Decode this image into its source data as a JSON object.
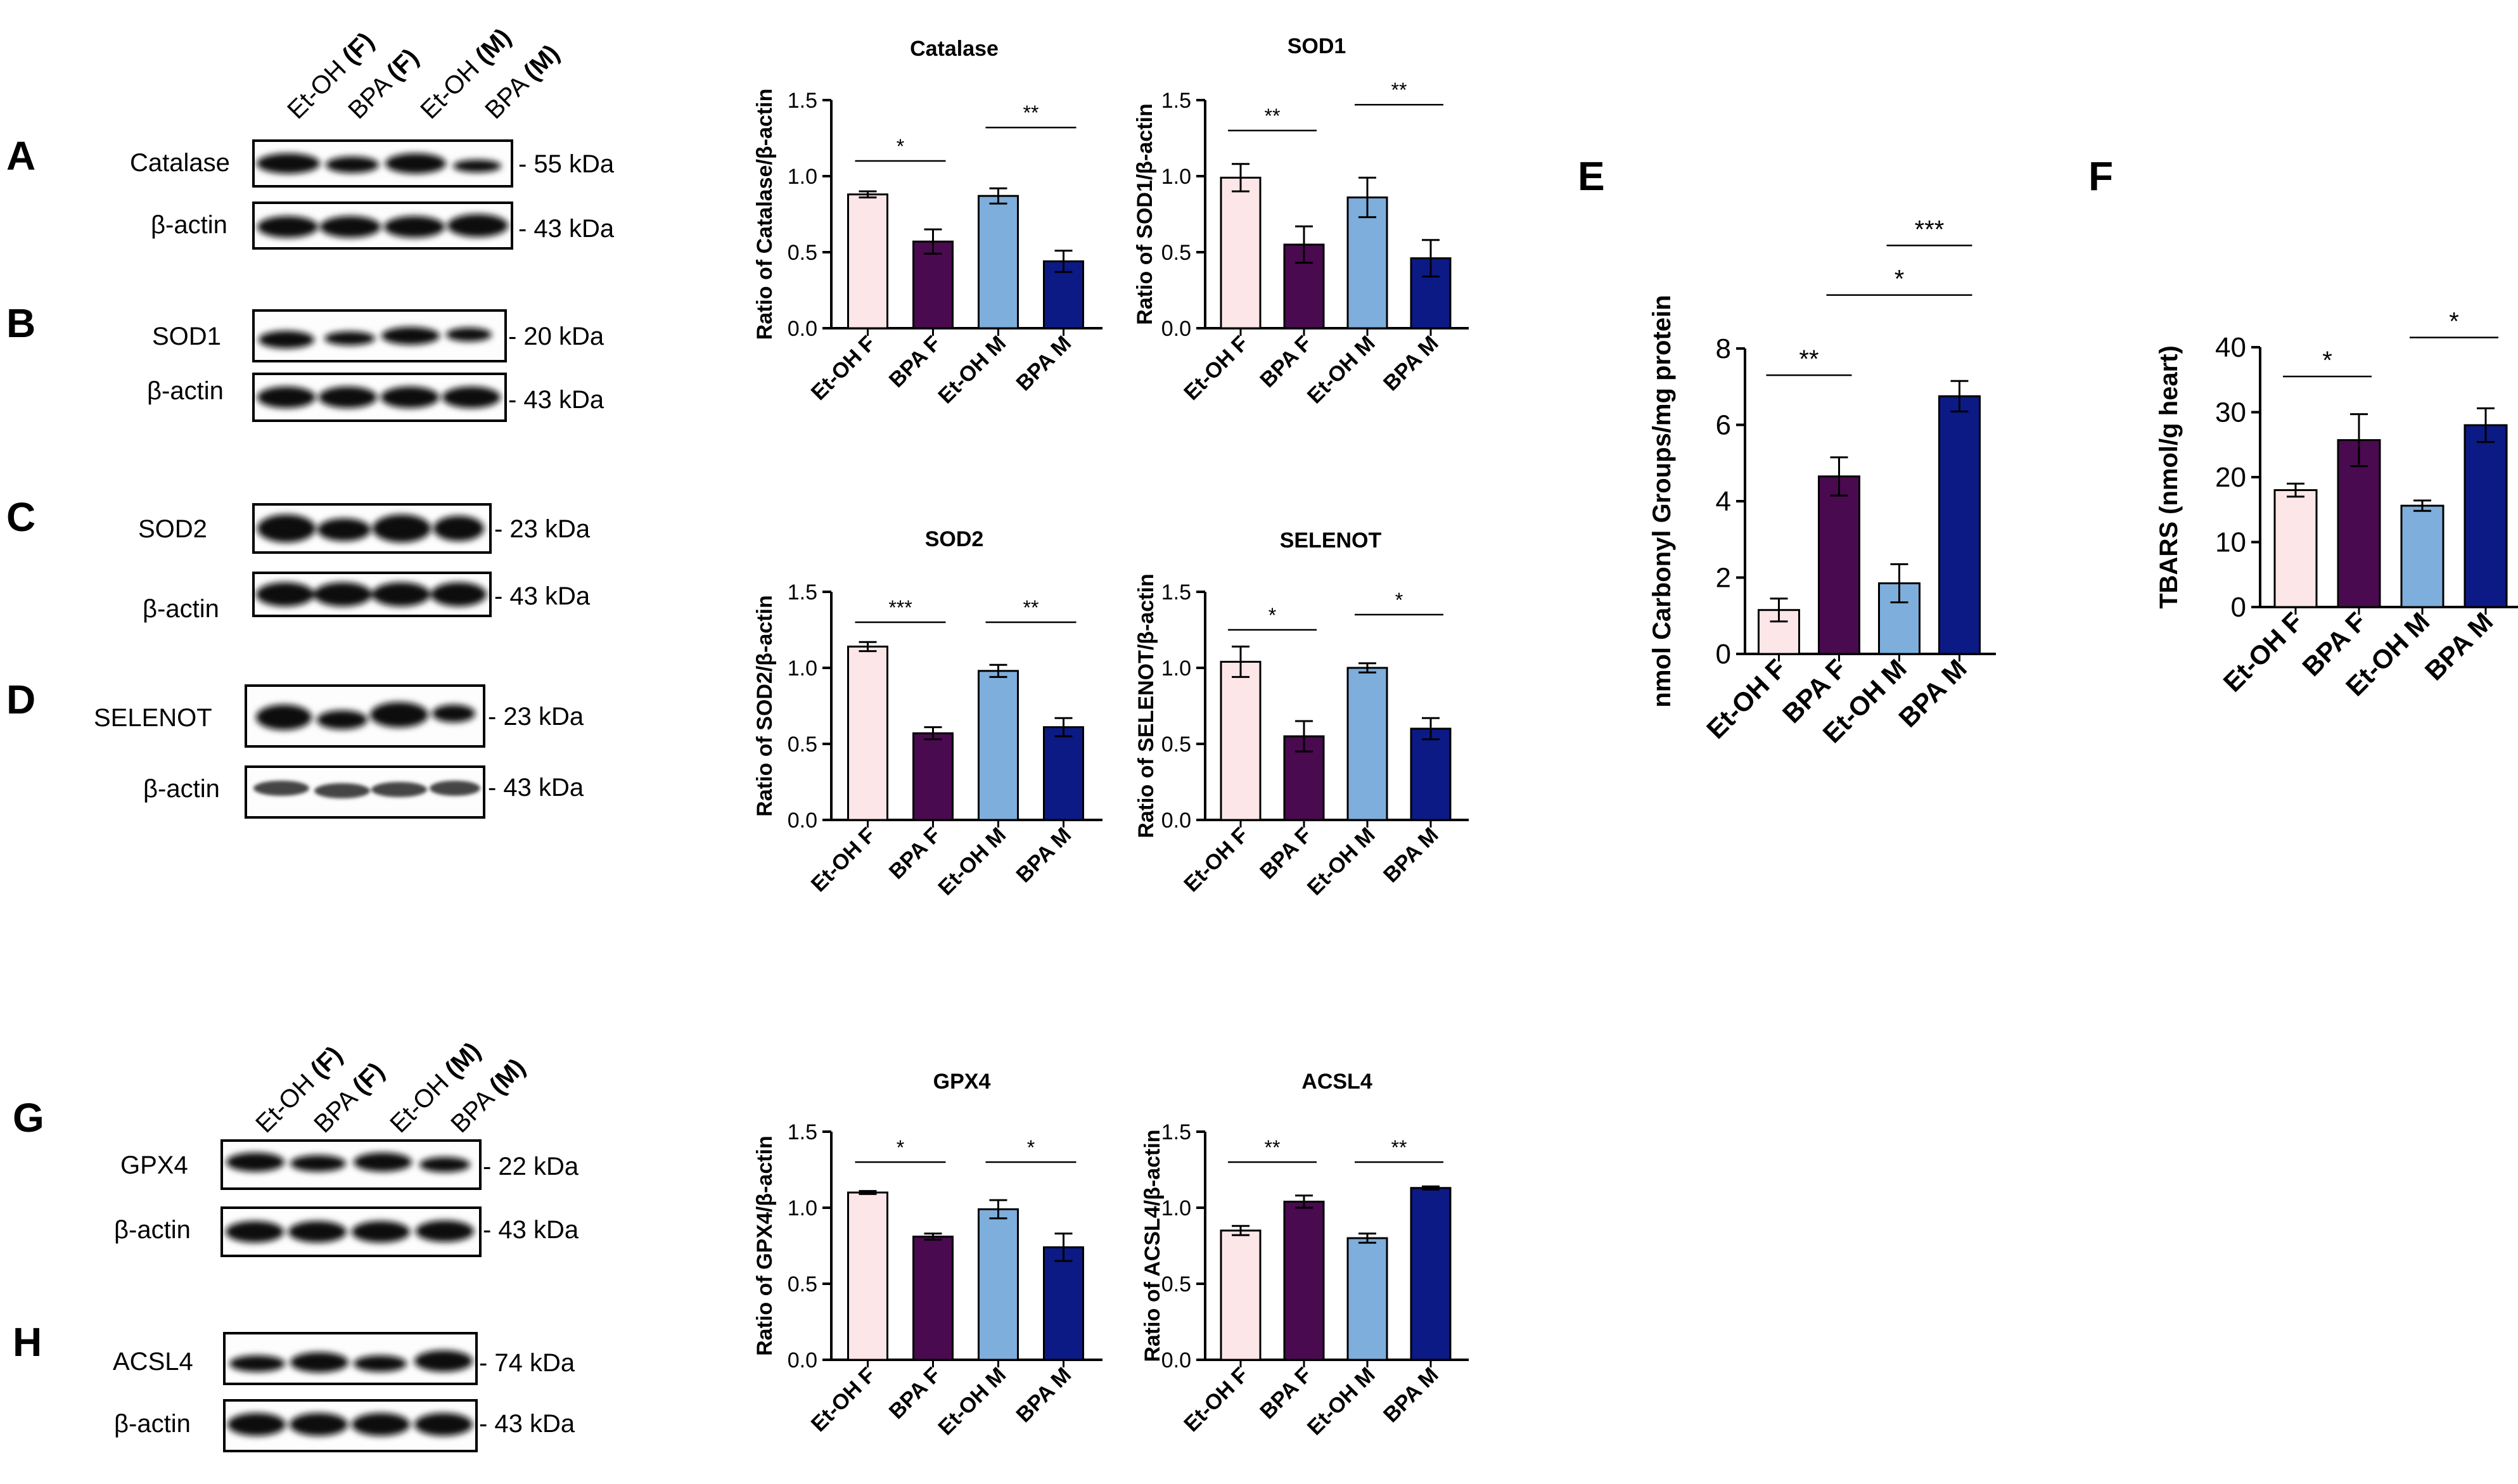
{
  "panels": {
    "A": "A",
    "B": "B",
    "C": "C",
    "D": "D",
    "E": "E",
    "F": "F",
    "G": "G",
    "H": "H"
  },
  "lanes_top": [
    {
      "name": "Et-OH",
      "sex": "(F)"
    },
    {
      "name": "BPA",
      "sex": "(F)"
    },
    {
      "name": "Et-OH",
      "sex": "(M)"
    },
    {
      "name": "BPA",
      "sex": "(M)"
    }
  ],
  "lanes_bottom": [
    {
      "name": "Et-OH",
      "sex": "(F)"
    },
    {
      "name": "BPA",
      "sex": "(F)"
    },
    {
      "name": "Et-OH",
      "sex": "(M)"
    },
    {
      "name": "BPA",
      "sex": "(M)"
    }
  ],
  "blots": [
    {
      "protein": "Catalase",
      "size": "- 55 kDa",
      "loading": "β-actin",
      "loading_size": "- 43 kDa"
    },
    {
      "protein": "SOD1",
      "size": "- 20 kDa",
      "loading": "β-actin",
      "loading_size": "- 43 kDa"
    },
    {
      "protein": "SOD2",
      "size": "- 23 kDa",
      "loading": "β-actin",
      "loading_size": "- 43 kDa"
    },
    {
      "protein": "SELENOT",
      "size": "- 23 kDa",
      "loading": "β-actin",
      "loading_size": "- 43 kDa"
    },
    {
      "protein": "GPX4",
      "size": "- 22 kDa",
      "loading": "β-actin",
      "loading_size": "- 43 kDa"
    },
    {
      "protein": "ACSL4",
      "size": "- 74 kDa",
      "loading": "β-actin",
      "loading_size": "- 43 kDa"
    }
  ],
  "colors": {
    "etoh_f": "#fde6e8",
    "bpa_f": "#4a0a4f",
    "etoh_m": "#7eaedb",
    "bpa_m": "#0c1a86",
    "axis": "#000000"
  },
  "chart_data": [
    {
      "id": "catalase",
      "type": "bar",
      "title": "Catalase",
      "ylabel": "Ratio of Catalase/β-actin",
      "categories": [
        "Et-OH F",
        "BPA F",
        "Et-OH M",
        "BPA M"
      ],
      "values": [
        0.88,
        0.57,
        0.87,
        0.44
      ],
      "errors": [
        0.02,
        0.08,
        0.05,
        0.07
      ],
      "ylim": [
        0,
        1.5
      ],
      "yticks": [
        "0.0",
        "0.5",
        "1.0",
        "1.5"
      ],
      "ytick_values": [
        0,
        0.5,
        1.0,
        1.5
      ],
      "significance": [
        {
          "from": 0,
          "to": 1,
          "label": "*",
          "level": 1.1
        },
        {
          "from": 2,
          "to": 3,
          "label": "**",
          "level": 1.32
        }
      ]
    },
    {
      "id": "sod1",
      "type": "bar",
      "title": "SOD1",
      "ylabel": "Ratio of SOD1/β-actin",
      "categories": [
        "Et-OH F",
        "BPA F",
        "Et-OH M",
        "BPA M"
      ],
      "values": [
        0.99,
        0.55,
        0.86,
        0.46
      ],
      "errors": [
        0.09,
        0.12,
        0.13,
        0.12
      ],
      "ylim": [
        0,
        1.5
      ],
      "yticks": [
        "0.0",
        "0.5",
        "1.0",
        "1.5"
      ],
      "ytick_values": [
        0,
        0.5,
        1.0,
        1.5
      ],
      "significance": [
        {
          "from": 0,
          "to": 1,
          "label": "**",
          "level": 1.3
        },
        {
          "from": 2,
          "to": 3,
          "label": "**",
          "level": 1.47
        }
      ]
    },
    {
      "id": "sod2",
      "type": "bar",
      "title": "SOD2",
      "ylabel": "Ratio of SOD2/β-actin",
      "categories": [
        "Et-OH F",
        "BPA F",
        "Et-OH M",
        "BPA M"
      ],
      "values": [
        1.14,
        0.57,
        0.98,
        0.61
      ],
      "errors": [
        0.03,
        0.04,
        0.04,
        0.06
      ],
      "ylim": [
        0,
        1.5
      ],
      "yticks": [
        "0.0",
        "0.5",
        "1.0",
        "1.5"
      ],
      "ytick_values": [
        0,
        0.5,
        1.0,
        1.5
      ],
      "significance": [
        {
          "from": 0,
          "to": 1,
          "label": "***",
          "level": 1.3
        },
        {
          "from": 2,
          "to": 3,
          "label": "**",
          "level": 1.3
        }
      ]
    },
    {
      "id": "selenot",
      "type": "bar",
      "title": "SELENOT",
      "ylabel": "Ratio of SELENOT/β-actin",
      "categories": [
        "Et-OH F",
        "BPA F",
        "Et-OH M",
        "BPA M"
      ],
      "values": [
        1.04,
        0.55,
        1.0,
        0.6
      ],
      "errors": [
        0.1,
        0.1,
        0.03,
        0.07
      ],
      "ylim": [
        0,
        1.5
      ],
      "yticks": [
        "0.0",
        "0.5",
        "1.0",
        "1.5"
      ],
      "ytick_values": [
        0,
        0.5,
        1.0,
        1.5
      ],
      "significance": [
        {
          "from": 0,
          "to": 1,
          "label": "*",
          "level": 1.25
        },
        {
          "from": 2,
          "to": 3,
          "label": "*",
          "level": 1.35
        }
      ]
    },
    {
      "id": "gpx4",
      "type": "bar",
      "title": "GPX4",
      "ylabel": "Ratio of GPX4/β-actin",
      "categories": [
        "Et-OH F",
        "BPA F",
        "Et-OH M",
        "BPA M"
      ],
      "values": [
        1.1,
        0.81,
        0.99,
        0.74
      ],
      "errors": [
        0.01,
        0.02,
        0.06,
        0.09
      ],
      "ylim": [
        0,
        1.5
      ],
      "yticks": [
        "0.0",
        "0.5",
        "1.0",
        "1.5"
      ],
      "ytick_values": [
        0,
        0.5,
        1.0,
        1.5
      ],
      "significance": [
        {
          "from": 0,
          "to": 1,
          "label": "*",
          "level": 1.3
        },
        {
          "from": 2,
          "to": 3,
          "label": "*",
          "level": 1.3
        }
      ]
    },
    {
      "id": "acsl4",
      "type": "bar",
      "title": "ACSL4",
      "ylabel": "Ratio of ACSL4/β-actin",
      "categories": [
        "Et-OH F",
        "BPA F",
        "Et-OH M",
        "BPA M"
      ],
      "values": [
        0.85,
        1.04,
        0.8,
        1.13
      ],
      "errors": [
        0.03,
        0.04,
        0.03,
        0.01
      ],
      "ylim": [
        0,
        1.5
      ],
      "yticks": [
        "0.0",
        "0.5",
        "1.0",
        "1.5"
      ],
      "ytick_values": [
        0,
        0.5,
        1.0,
        1.5
      ],
      "significance": [
        {
          "from": 0,
          "to": 1,
          "label": "**",
          "level": 1.3
        },
        {
          "from": 2,
          "to": 3,
          "label": "**",
          "level": 1.3
        }
      ]
    },
    {
      "id": "carbonyl",
      "type": "bar",
      "title": "",
      "ylabel": "nmol Carbonyl Groups/mg protein",
      "categories": [
        "Et-OH F",
        "BPA F",
        "Et-OH M",
        "BPA M"
      ],
      "values": [
        1.15,
        4.65,
        1.85,
        6.75
      ],
      "errors": [
        0.3,
        0.5,
        0.5,
        0.4
      ],
      "ylim": [
        0,
        8
      ],
      "yticks": [
        "0",
        "2",
        "4",
        "6",
        "8"
      ],
      "ytick_values": [
        0,
        2,
        4,
        6,
        8
      ],
      "significance": [
        {
          "from": 0,
          "to": 1,
          "label": "**",
          "level": 7.3
        },
        {
          "from": 1,
          "to": 3,
          "label": "*",
          "level": 9.4
        },
        {
          "from": 2,
          "to": 3,
          "label": "***",
          "level": 10.7
        }
      ]
    },
    {
      "id": "tbars",
      "type": "bar",
      "title": "",
      "ylabel": "TBARS (nmol/g heart)",
      "categories": [
        "Et-OH F",
        "BPA F",
        "Et-OH M",
        "BPA M"
      ],
      "values": [
        18,
        25.7,
        15.6,
        28
      ],
      "errors": [
        1,
        4,
        0.8,
        2.6
      ],
      "ylim": [
        0,
        40
      ],
      "yticks": [
        "0",
        "10",
        "20",
        "30",
        "40"
      ],
      "ytick_values": [
        0,
        10,
        20,
        30,
        40
      ],
      "significance": [
        {
          "from": 0,
          "to": 1,
          "label": "*",
          "level": 35.5
        },
        {
          "from": 2,
          "to": 3,
          "label": "*",
          "level": 41.5
        }
      ]
    }
  ]
}
